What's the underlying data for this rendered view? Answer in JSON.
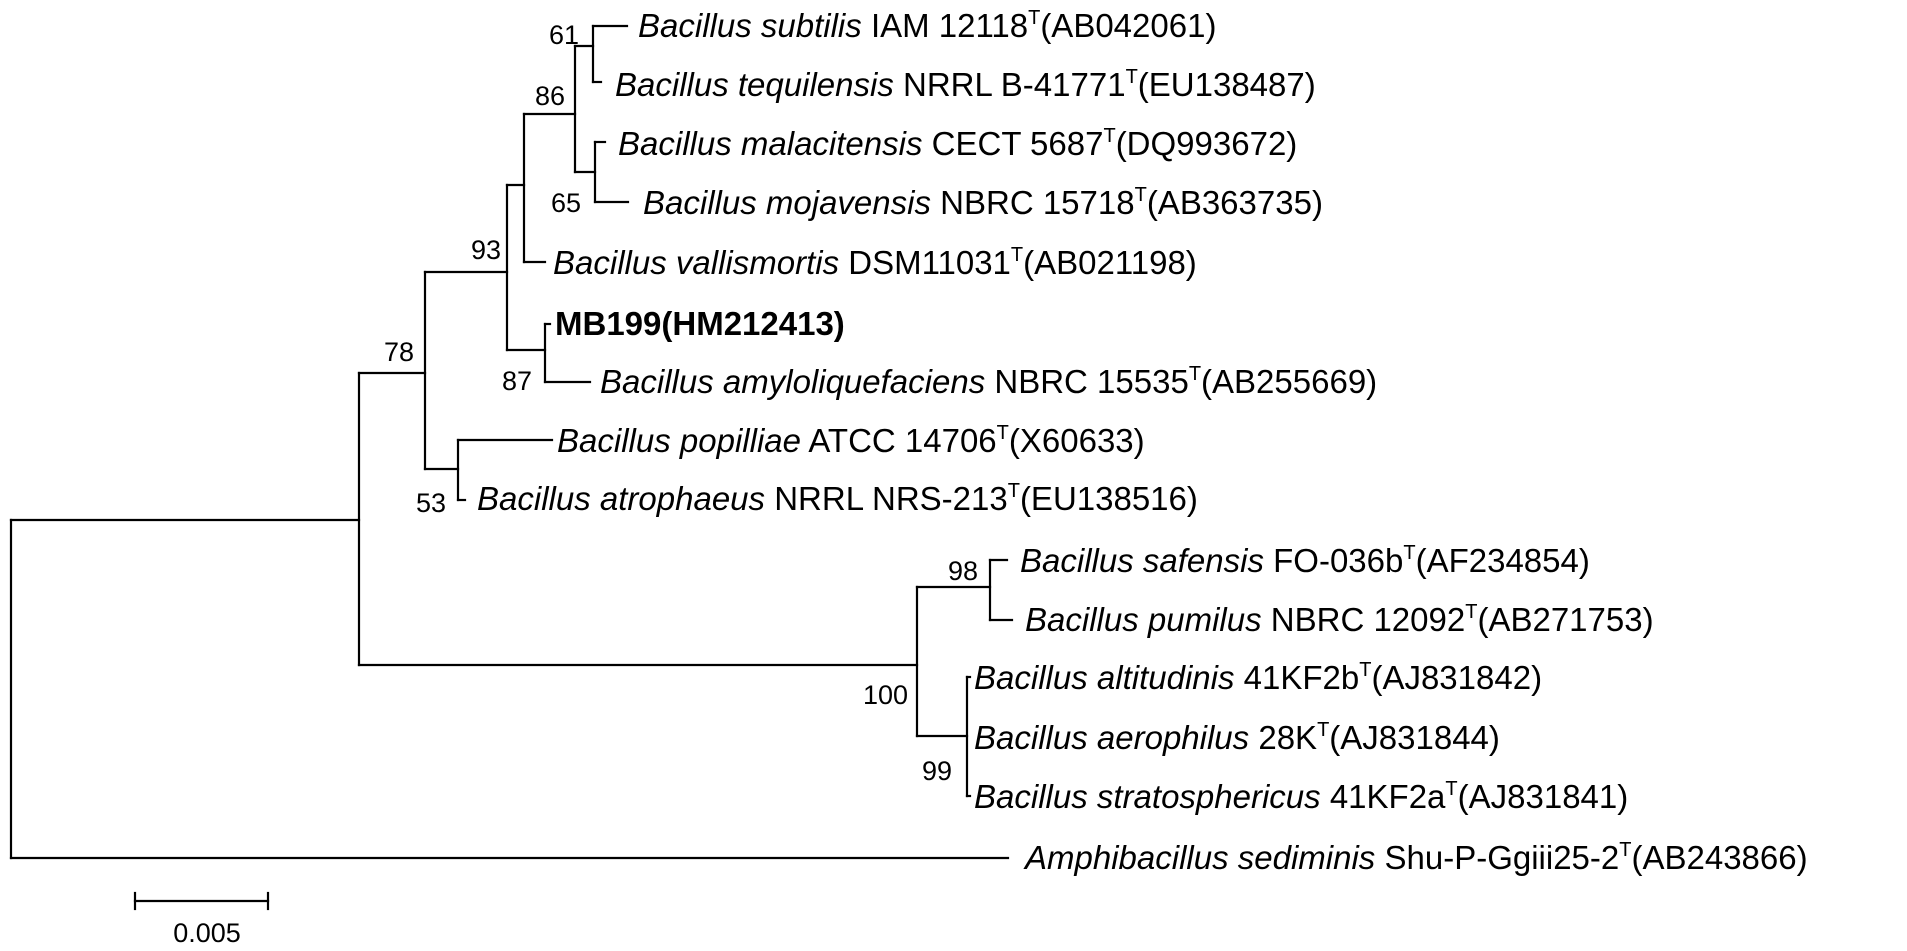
{
  "taxa": [
    {
      "id": "subtilis",
      "genus": "Bacillus",
      "species": "subtilis",
      "strain": "IAM 12118",
      "sup": "T",
      "acc": "(AB042061)"
    },
    {
      "id": "tequilensis",
      "genus": "Bacillus",
      "species": "tequilensis",
      "strain": "NRRL B-41771",
      "sup": "T",
      "acc": "(EU138487)"
    },
    {
      "id": "malacitensis",
      "genus": "Bacillus",
      "species": "malacitensis",
      "strain": "CECT 5687",
      "sup": "T",
      "acc": "(DQ993672)"
    },
    {
      "id": "mojavensis",
      "genus": "Bacillus",
      "species": "mojavensis",
      "strain": "NBRC 15718",
      "sup": "T",
      "acc": "(AB363735)"
    },
    {
      "id": "vallismortis",
      "genus": "Bacillus",
      "species": "vallismortis",
      "strain": "DSM11031",
      "sup": "T",
      "acc": "(AB021198)"
    },
    {
      "id": "mb199",
      "bold_label": "MB199(HM212413)"
    },
    {
      "id": "amyloliquefaciens",
      "genus": "Bacillus",
      "species": "amyloliquefaciens",
      "strain": "NBRC 15535",
      "sup": "T",
      "acc": "(AB255669)"
    },
    {
      "id": "popilliae",
      "genus": "Bacillus",
      "species": "popilliae",
      "strain": "ATCC 14706",
      "sup": "T",
      "acc": "(X60633)"
    },
    {
      "id": "atrophaeus",
      "genus": "Bacillus",
      "species": "atrophaeus",
      "strain": "NRRL NRS-213",
      "sup": "T",
      "acc": "(EU138516)"
    },
    {
      "id": "safensis",
      "genus": "Bacillus",
      "species": "safensis",
      "strain": "FO-036b",
      "sup": "T",
      "acc": "(AF234854)"
    },
    {
      "id": "pumilus",
      "genus": "Bacillus",
      "species": "pumilus",
      "strain": "NBRC 12092",
      "sup": "T",
      "acc": "(AB271753)"
    },
    {
      "id": "altitudinis",
      "genus": "Bacillus",
      "species": "altitudinis",
      "strain": "41KF2b",
      "sup": "T",
      "acc": "(AJ831842)"
    },
    {
      "id": "aerophilus",
      "genus": "Bacillus",
      "species": "aerophilus",
      "strain": "28K",
      "sup": "T",
      "acc": "(AJ831844)"
    },
    {
      "id": "stratosphericus",
      "genus": "Bacillus",
      "species": "stratosphericus",
      "strain": "41KF2a",
      "sup": "T",
      "acc": "(AJ831841)"
    },
    {
      "id": "sediminis",
      "genus": "Amphibacillus",
      "species": "sediminis",
      "strain": "Shu-P-Ggiii25-2",
      "sup": "T",
      "acc": "(AB243866)"
    }
  ],
  "bootstrap": {
    "b61": "61",
    "b86": "86",
    "b65": "65",
    "b93": "93",
    "b87": "87",
    "b78": "78",
    "b53": "53",
    "b98": "98",
    "b100": "100",
    "b99": "99"
  },
  "scale_bar": {
    "label": "0.005"
  }
}
